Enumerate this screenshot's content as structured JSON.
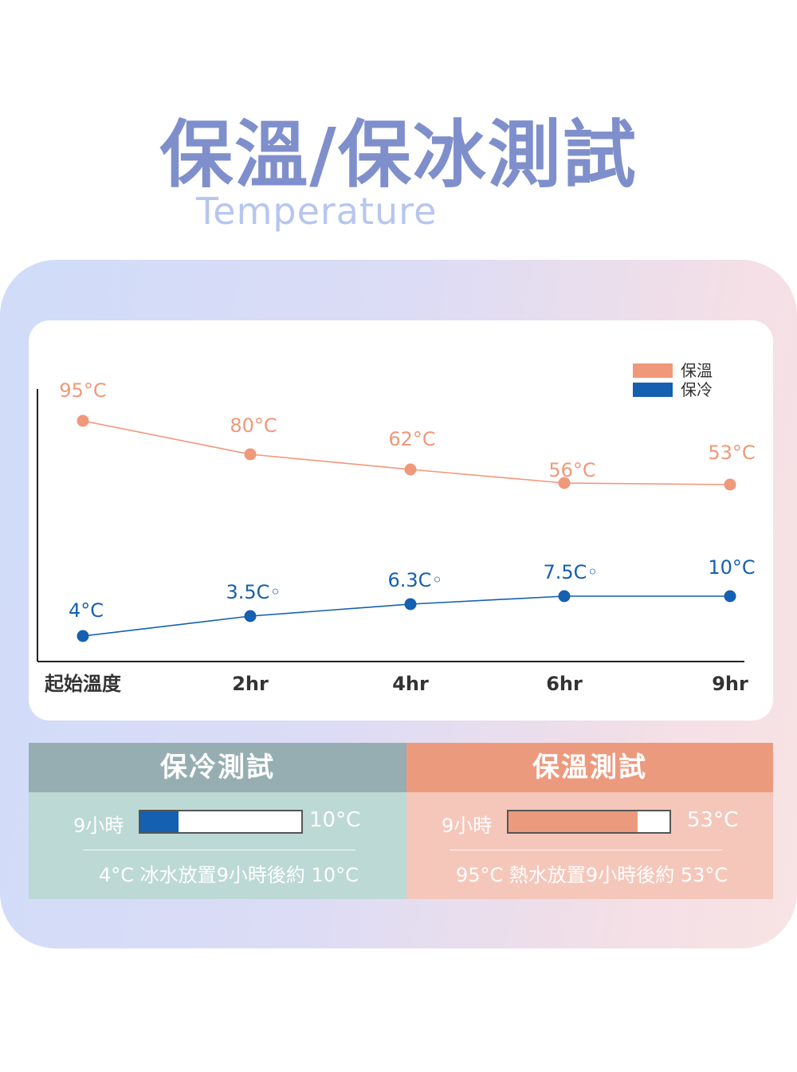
{
  "title": "保溫/保冰測試",
  "subtitle": "Temperature",
  "colors": {
    "warm": "#f0987a",
    "cold": "#1560b0",
    "title": "#7f8fcc"
  },
  "chart_data": {
    "type": "line",
    "categories": [
      "起始溫度",
      "2hr",
      "4hr",
      "6hr",
      "9hr"
    ],
    "legend_position": "top-right",
    "series": [
      {
        "name": "保溫",
        "color": "#f0987a",
        "values": [
          95,
          80,
          62,
          56,
          53
        ],
        "labels": [
          "95°C",
          "80°C",
          "62°C",
          "56°C",
          "53°C"
        ]
      },
      {
        "name": "保冷",
        "color": "#1560b0",
        "values": [
          4,
          3.5,
          6.3,
          7.5,
          10
        ],
        "labels": [
          "4°C",
          "3.5C◦",
          "6.3C◦",
          "7.5C◦",
          "10°C"
        ]
      }
    ],
    "grid": false
  },
  "cold_test": {
    "heading": "保冷測試",
    "time_label": "9小時",
    "end_value": "10°C",
    "fill_fraction": 0.24,
    "bar_color": "#1560b0",
    "note": "4°C 冰水放置9小時後約 10°C"
  },
  "hot_test": {
    "heading": "保溫測試",
    "time_label": "9小時",
    "end_value": "53°C",
    "fill_fraction": 0.8,
    "bar_color": "#ec9a7e",
    "note": "95°C  熱水放置9小時後約 53°C"
  }
}
